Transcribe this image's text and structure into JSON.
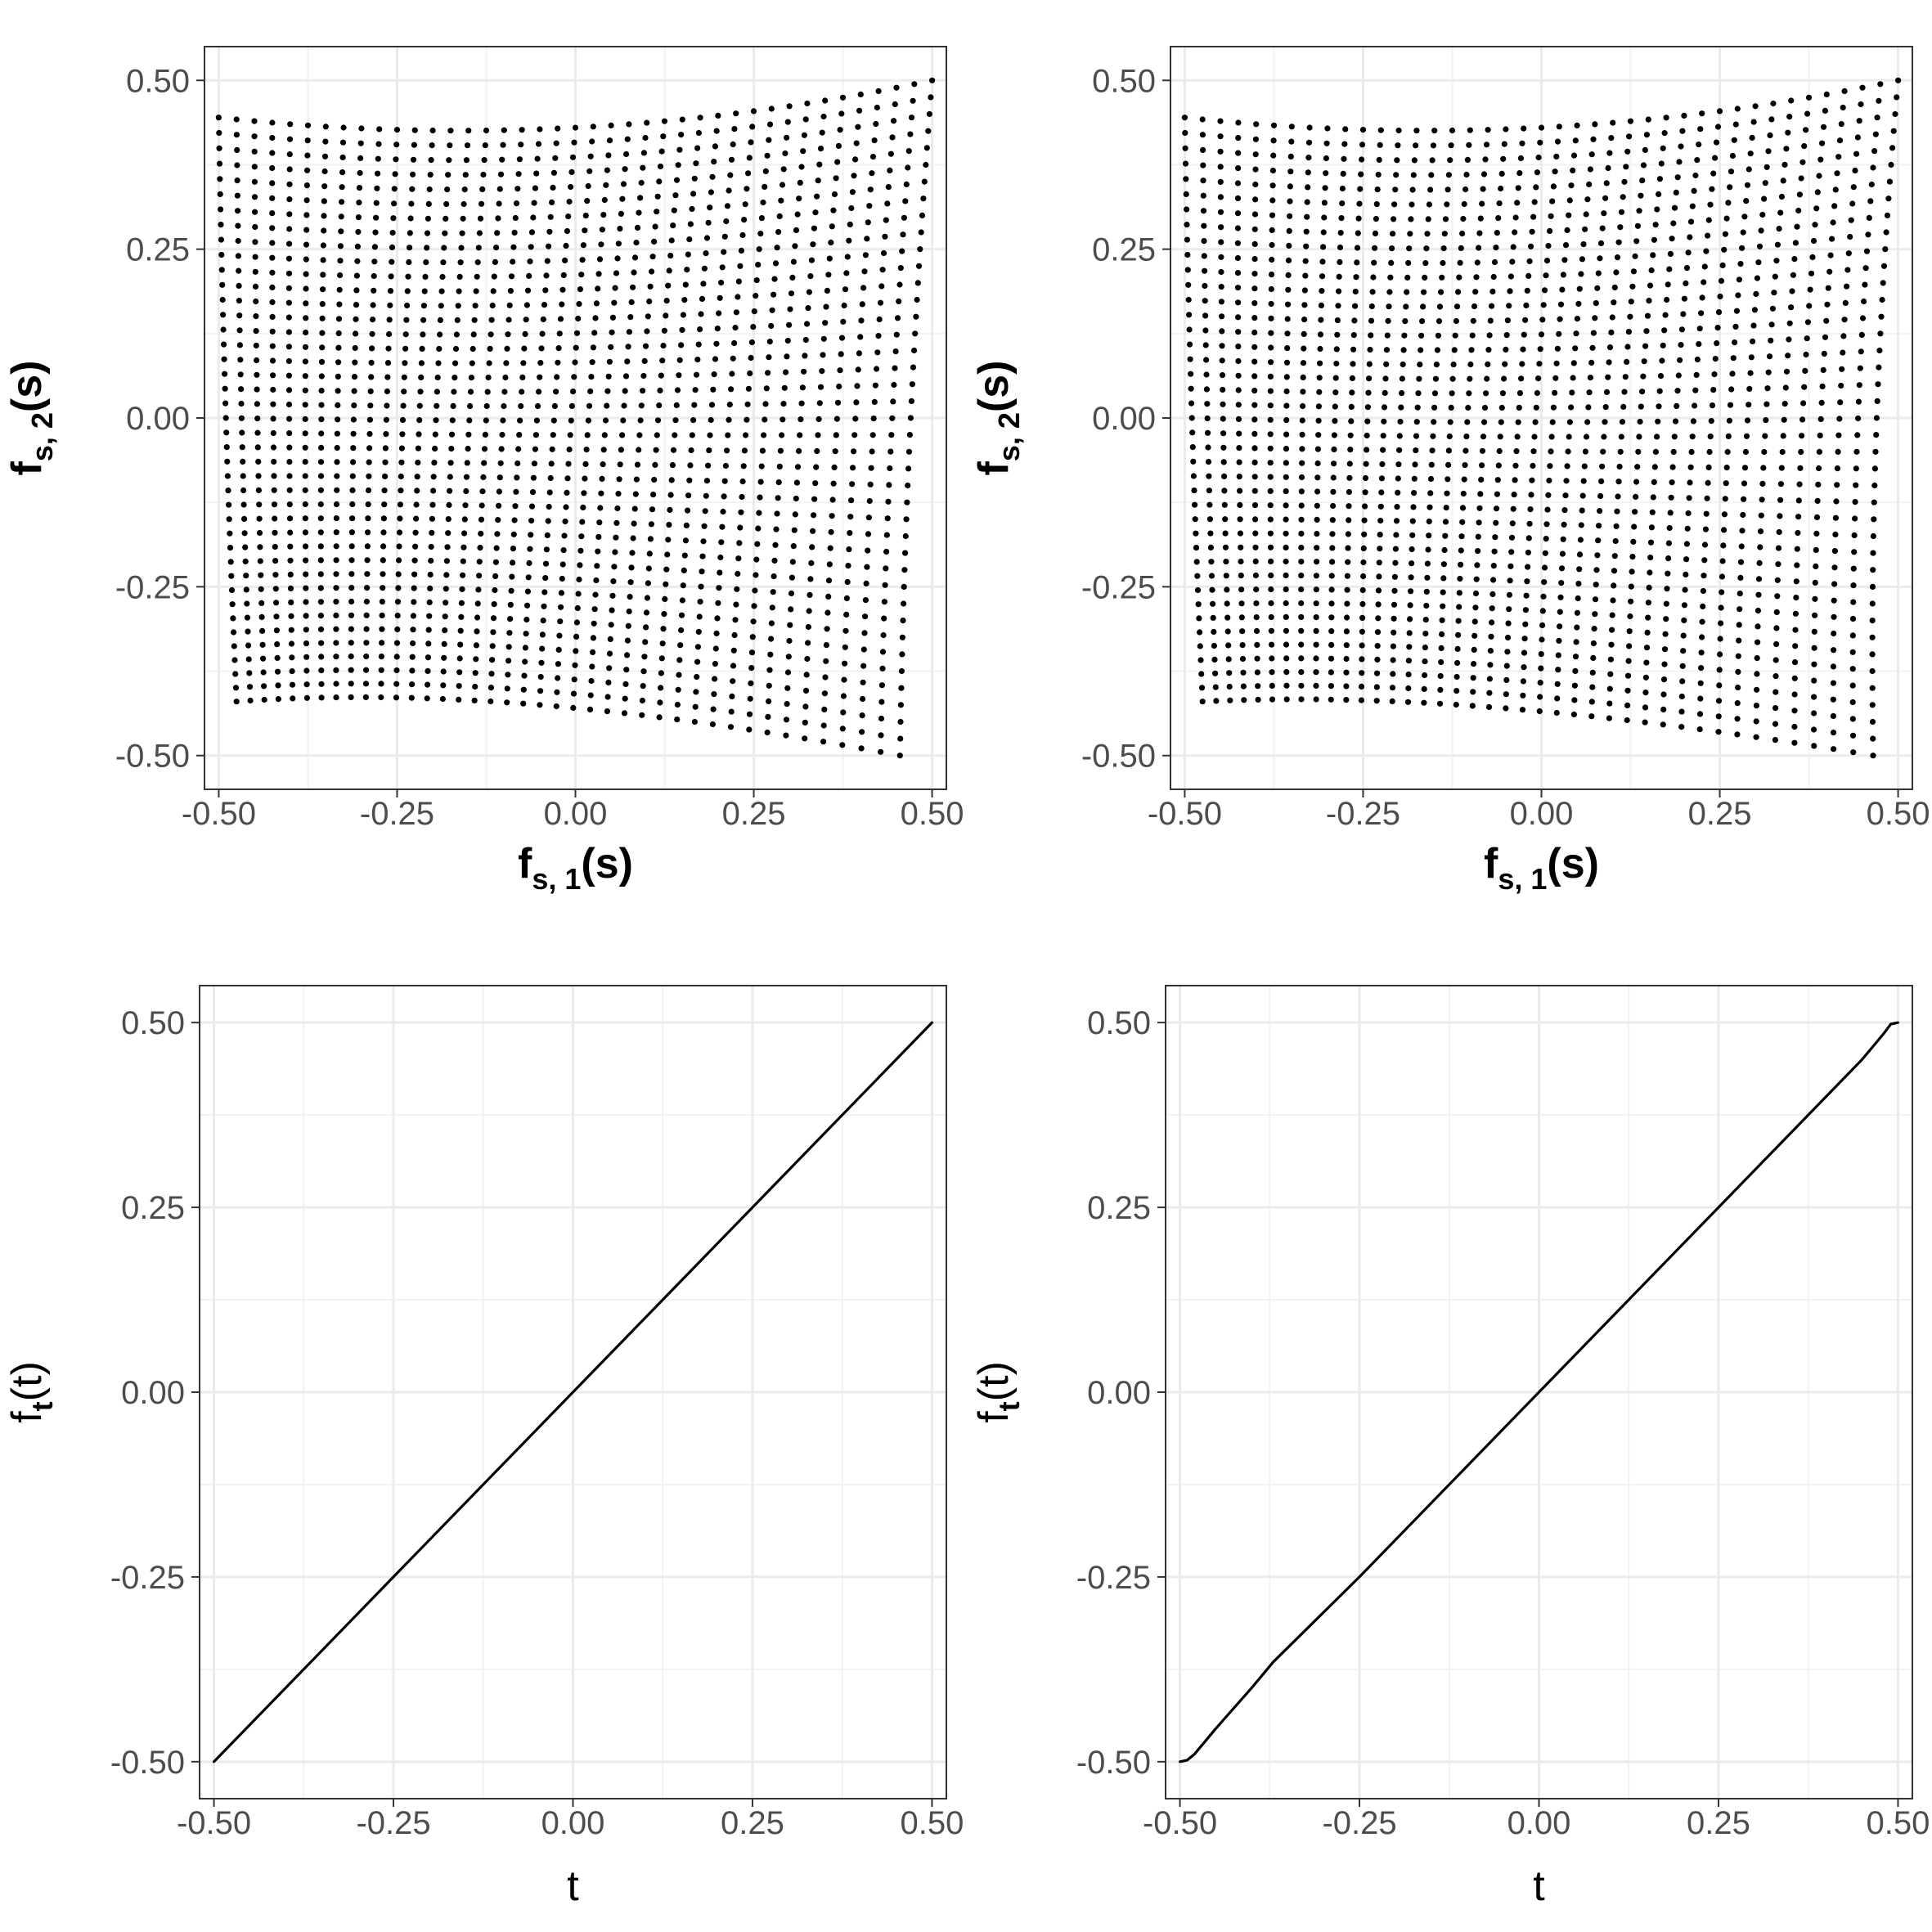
{
  "chart_data": [
    {
      "type": "scatter",
      "panel": "top-left",
      "xlabel": {
        "base": "f",
        "sub": "s, 1",
        "arg": "(s)"
      },
      "ylabel": {
        "base": "f",
        "sub": "s, 2",
        "arg": "(s)"
      },
      "xlim": [
        -0.52,
        0.52
      ],
      "ylim": [
        -0.55,
        0.55
      ],
      "x_ticks": [
        -0.5,
        -0.25,
        0.0,
        0.25,
        0.5
      ],
      "y_ticks": [
        -0.5,
        -0.25,
        0.0,
        0.25,
        0.5
      ],
      "x_tick_labels": [
        "-0.50",
        "-0.25",
        "0.00",
        "0.25",
        "0.50"
      ],
      "y_tick_labels": [
        "-0.50",
        "-0.25",
        "0.00",
        "0.25",
        "0.50"
      ],
      "grid": true,
      "point_color": "#000000",
      "grid_description": "41 x 41 warped lattice of points",
      "corners": {
        "top_left": [
          -0.5,
          0.445
        ],
        "top_right": [
          0.5,
          0.5
        ],
        "bottom_left": [
          -0.475,
          -0.42
        ],
        "bottom_right": [
          0.455,
          -0.5
        ],
        "left_mid": [
          -0.49,
          0.0
        ],
        "right_mid": [
          0.47,
          0.0
        ],
        "top_mid": [
          0.0,
          0.43
        ],
        "bottom_mid": [
          -0.05,
          -0.425
        ]
      }
    },
    {
      "type": "scatter",
      "panel": "top-right",
      "xlabel": {
        "base": "f",
        "sub": "s, 1",
        "arg": "(s)"
      },
      "ylabel": {
        "base": "f",
        "sub": "s, 2",
        "arg": "(s)"
      },
      "xlim": [
        -0.52,
        0.52
      ],
      "ylim": [
        -0.55,
        0.55
      ],
      "x_ticks": [
        -0.5,
        -0.25,
        0.0,
        0.25,
        0.5
      ],
      "y_ticks": [
        -0.5,
        -0.25,
        0.0,
        0.25,
        0.5
      ],
      "x_tick_labels": [
        "-0.50",
        "-0.25",
        "0.00",
        "0.25",
        "0.50"
      ],
      "y_tick_labels": [
        "-0.50",
        "-0.25",
        "0.00",
        "0.25",
        "0.50"
      ],
      "grid": true,
      "point_color": "#000000",
      "grid_description": "41 x 41 warped lattice of points",
      "corners": {
        "top_left": [
          -0.5,
          0.445
        ],
        "top_right": [
          0.5,
          0.5
        ],
        "bottom_left": [
          -0.475,
          -0.42
        ],
        "bottom_right": [
          0.465,
          -0.5
        ],
        "left_mid": [
          -0.49,
          0.0
        ],
        "right_mid": [
          0.47,
          0.0
        ],
        "top_mid": [
          0.0,
          0.43
        ],
        "bottom_mid": [
          -0.05,
          -0.43
        ]
      }
    },
    {
      "type": "line",
      "panel": "bottom-left",
      "xlabel": {
        "base": "t"
      },
      "ylabel": {
        "base": "f",
        "sub": "t",
        "arg": "(t)"
      },
      "xlim": [
        -0.52,
        0.52
      ],
      "ylim": [
        -0.55,
        0.55
      ],
      "x_ticks": [
        -0.5,
        -0.25,
        0.0,
        0.25,
        0.5
      ],
      "y_ticks": [
        -0.5,
        -0.25,
        0.0,
        0.25,
        0.5
      ],
      "x_tick_labels": [
        "-0.50",
        "-0.25",
        "0.00",
        "0.25",
        "0.50"
      ],
      "y_tick_labels": [
        "-0.50",
        "-0.25",
        "0.00",
        "0.25",
        "0.50"
      ],
      "grid": true,
      "line_color": "#000000",
      "x": [
        -0.5,
        -0.25,
        0.0,
        0.25,
        0.5
      ],
      "y": [
        -0.5,
        -0.25,
        0.0,
        0.25,
        0.5
      ]
    },
    {
      "type": "line",
      "panel": "bottom-right",
      "xlabel": {
        "base": "t"
      },
      "ylabel": {
        "base": "f",
        "sub": "t",
        "arg": "(t)"
      },
      "xlim": [
        -0.52,
        0.52
      ],
      "ylim": [
        -0.55,
        0.55
      ],
      "x_ticks": [
        -0.5,
        -0.25,
        0.0,
        0.25,
        0.5
      ],
      "y_ticks": [
        -0.5,
        -0.25,
        0.0,
        0.25,
        0.5
      ],
      "x_tick_labels": [
        "-0.50",
        "-0.25",
        "0.00",
        "0.25",
        "0.50"
      ],
      "y_tick_labels": [
        "-0.50",
        "-0.25",
        "0.00",
        "0.25",
        "0.50"
      ],
      "grid": true,
      "line_color": "#000000",
      "x": [
        -0.5,
        -0.49,
        -0.48,
        -0.45,
        -0.4,
        -0.37,
        -0.25,
        0.0,
        0.25,
        0.45,
        0.48,
        0.49,
        0.5
      ],
      "y": [
        -0.5,
        -0.498,
        -0.49,
        -0.455,
        -0.4,
        -0.365,
        -0.25,
        0.0,
        0.25,
        0.45,
        0.485,
        0.498,
        0.5
      ]
    }
  ]
}
